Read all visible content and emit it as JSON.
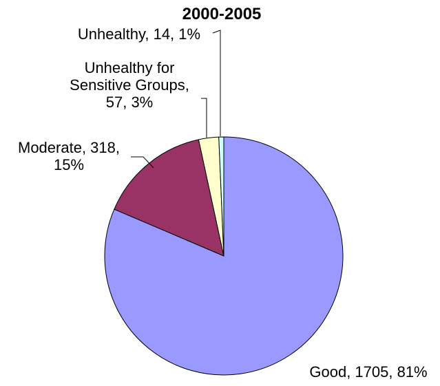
{
  "chart_data": {
    "type": "pie",
    "title": "2000-2005",
    "slices": [
      {
        "category": "Good",
        "value": 1705,
        "percent": "81%",
        "color": "#9999ff",
        "label_lines": [
          "Good, 1705, 81%"
        ]
      },
      {
        "category": "Moderate",
        "value": 318,
        "percent": "15%",
        "color": "#993366",
        "label_lines": [
          "Moderate, 318,",
          "15%"
        ]
      },
      {
        "category": "Unhealthy for Sensitive Groups",
        "value": 57,
        "percent": "3%",
        "color": "#ffffcc",
        "label_lines": [
          "Unhealthy for",
          "Sensitive Groups,",
          "57, 3%"
        ]
      },
      {
        "category": "Unhealthy",
        "value": 14,
        "percent": "1%",
        "color": "#ccffff",
        "label_lines": [
          "Unhealthy, 14, 1%"
        ]
      }
    ]
  }
}
